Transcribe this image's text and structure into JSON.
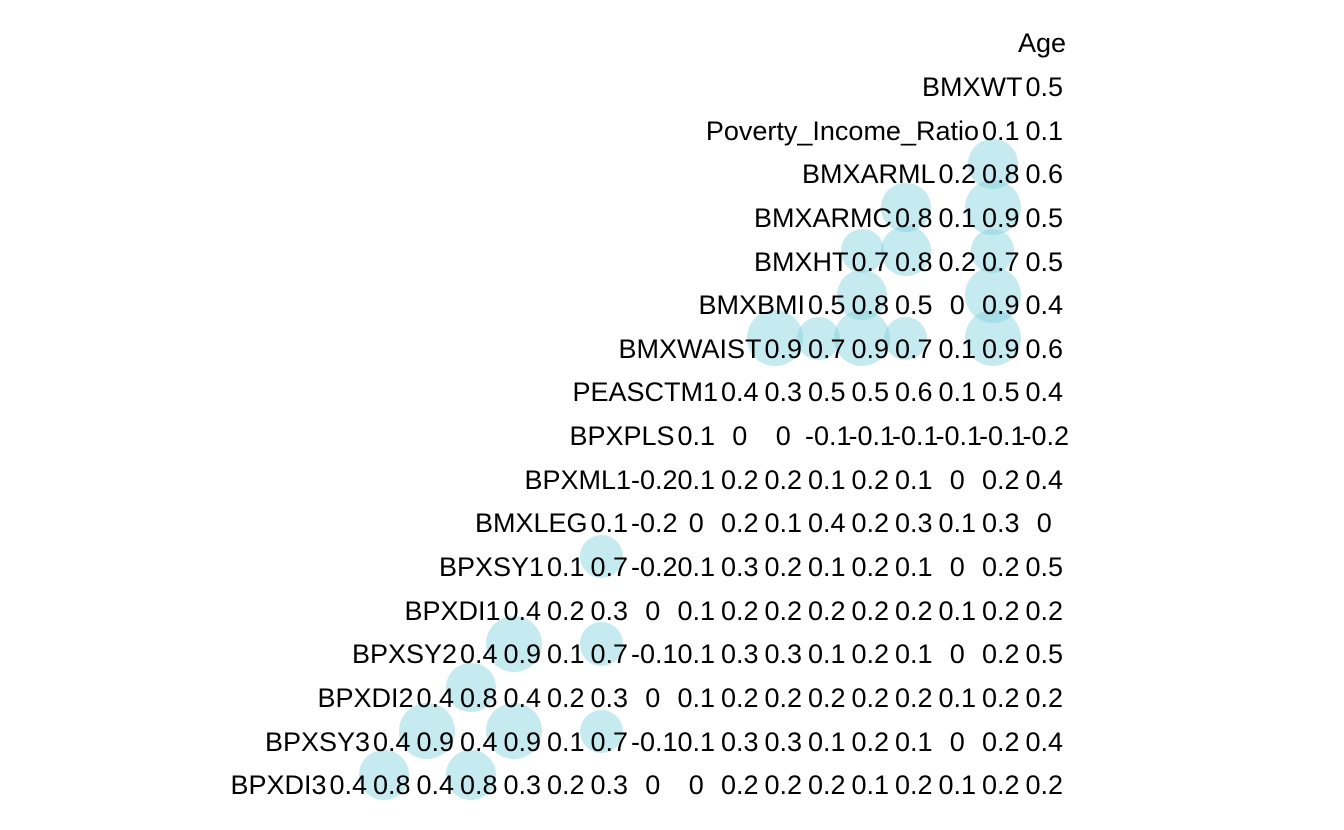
{
  "page": {
    "background_color": "#ffffff",
    "text_color": "#000000"
  },
  "chart_data": {
    "type": "heatmap",
    "subtype": "correlation-matrix-lower-triangle",
    "title": "",
    "xlabel": "",
    "ylabel": "",
    "legend": "none",
    "grid": false,
    "layout_hint": "variable labels form a descending diagonal staircase; each row's correlation values are right-aligned to a common right edge; pale cyan circles sized by |r| are drawn behind values with |r| >= 0.7",
    "circle_threshold": 0.7,
    "circle_color": "#7ed0dc",
    "circle_opacity": 0.45,
    "text_color": "#000000",
    "background_color": "#ffffff",
    "variables": [
      "Age",
      "BMXWT",
      "Poverty_Income_Ratio",
      "BMXARML",
      "BMXARMC",
      "BMXHT",
      "BMXBMI",
      "BMXWAIST",
      "PEASCTM1",
      "BPXPLS",
      "BPXML1",
      "BMXLEG",
      "BPXSY1",
      "BPXDI1",
      "BPXSY2",
      "BPXDI2",
      "BPXSY3",
      "BPXDI3"
    ],
    "rows": [
      {
        "label": "Age",
        "values": []
      },
      {
        "label": "BMXWT",
        "values": [
          0.5
        ]
      },
      {
        "label": "Poverty_Income_Ratio",
        "values": [
          0.1,
          0.1
        ]
      },
      {
        "label": "BMXARML",
        "values": [
          0.2,
          0.8,
          0.6
        ]
      },
      {
        "label": "BMXARMC",
        "values": [
          0.8,
          0.1,
          0.9,
          0.5
        ]
      },
      {
        "label": "BMXHT",
        "values": [
          0.7,
          0.8,
          0.2,
          0.7,
          0.5
        ]
      },
      {
        "label": "BMXBMI",
        "values": [
          0.5,
          0.8,
          0.5,
          0,
          0.9,
          0.4
        ]
      },
      {
        "label": "BMXWAIST",
        "values": [
          0.9,
          0.7,
          0.9,
          0.7,
          0.1,
          0.9,
          0.6
        ]
      },
      {
        "label": "PEASCTM1",
        "values": [
          0.4,
          0.3,
          0.5,
          0.5,
          0.6,
          0.1,
          0.5,
          0.4
        ]
      },
      {
        "label": "BPXPLS",
        "values": [
          0.1,
          0,
          0,
          -0.1,
          -0.1,
          -0.1,
          -0.1,
          -0.1,
          -0.2
        ]
      },
      {
        "label": "BPXML1",
        "values": [
          -0.2,
          0.1,
          0.2,
          0.2,
          0.1,
          0.2,
          0.1,
          0,
          0.2,
          0.4
        ]
      },
      {
        "label": "BMXLEG",
        "values": [
          0.1,
          -0.2,
          0,
          0.2,
          0.1,
          0.4,
          0.2,
          0.3,
          0.1,
          0.3,
          0
        ]
      },
      {
        "label": "BPXSY1",
        "values": [
          0.1,
          0.7,
          -0.2,
          0.1,
          0.3,
          0.2,
          0.1,
          0.2,
          0.1,
          0,
          0.2,
          0.5
        ]
      },
      {
        "label": "BPXDI1",
        "values": [
          0.4,
          0.2,
          0.3,
          0,
          0.1,
          0.2,
          0.2,
          0.2,
          0.2,
          0.2,
          0.1,
          0.2,
          0.2
        ]
      },
      {
        "label": "BPXSY2",
        "values": [
          0.4,
          0.9,
          0.1,
          0.7,
          -0.1,
          0.1,
          0.3,
          0.3,
          0.1,
          0.2,
          0.1,
          0,
          0.2,
          0.5
        ]
      },
      {
        "label": "BPXDI2",
        "values": [
          0.4,
          0.8,
          0.4,
          0.2,
          0.3,
          0,
          0.1,
          0.2,
          0.2,
          0.2,
          0.2,
          0.2,
          0.1,
          0.2,
          0.2
        ]
      },
      {
        "label": "BPXSY3",
        "values": [
          0.4,
          0.9,
          0.4,
          0.9,
          0.1,
          0.7,
          -0.1,
          0.1,
          0.3,
          0.3,
          0.1,
          0.2,
          0.1,
          0,
          0.2,
          0.4
        ]
      },
      {
        "label": "BPXDI3",
        "values": [
          0.4,
          0.8,
          0.4,
          0.8,
          0.3,
          0.2,
          0.3,
          0,
          0,
          0.2,
          0.2,
          0.2,
          0.1,
          0.2,
          0.1,
          0.2,
          0.2
        ]
      }
    ]
  }
}
